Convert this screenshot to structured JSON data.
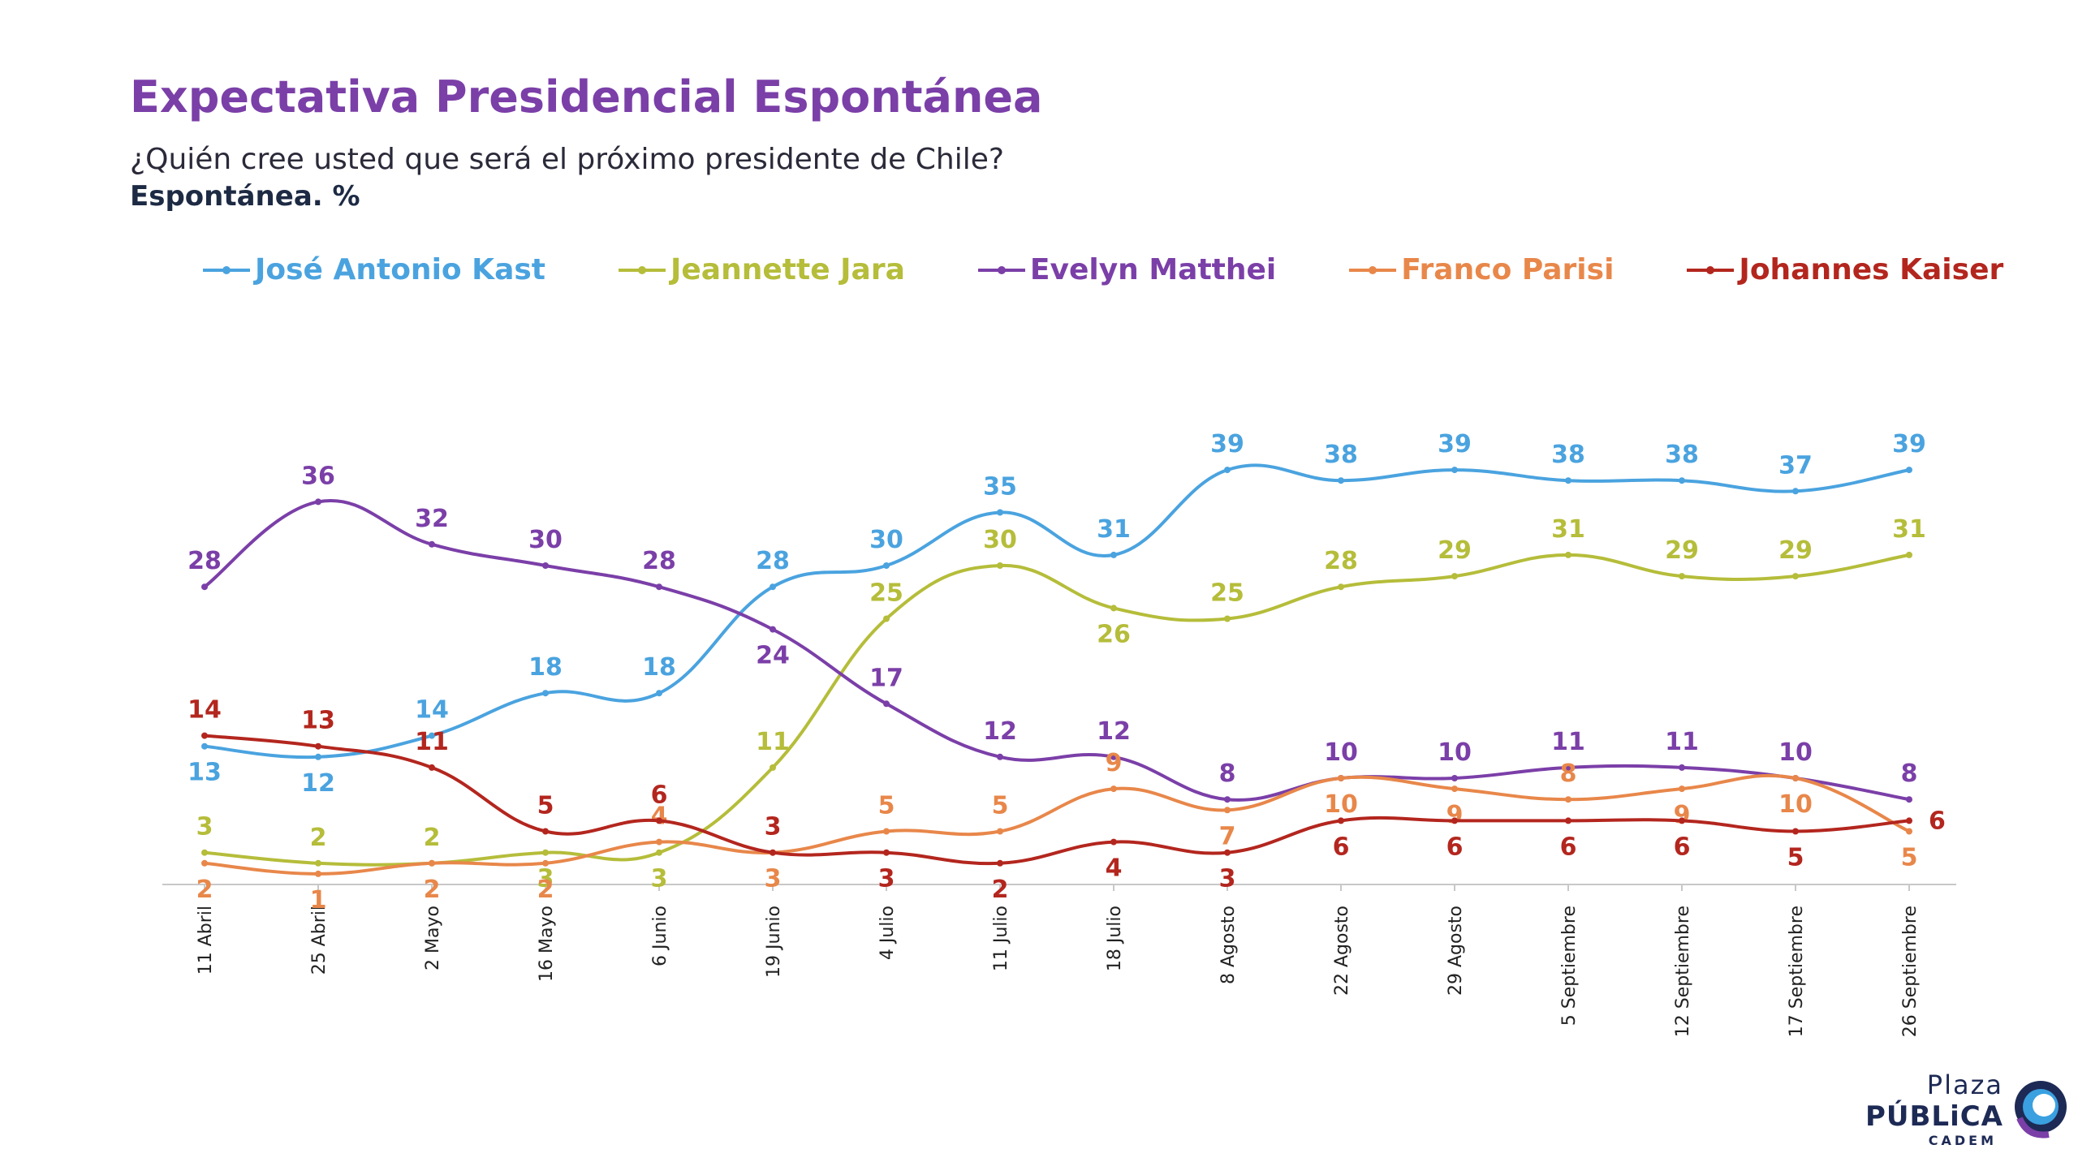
{
  "header": {
    "title": "Expectativa Presidencial Espontánea",
    "subtitle": "¿Quién cree usted que será el próximo presidente de Chile?",
    "subtitle2": "Espontánea. %"
  },
  "logo": {
    "line1": "Plaza",
    "line2": "PÚBLiCA",
    "line3": "CADEM"
  },
  "chart_data": {
    "type": "line",
    "categories": [
      "11 Abril",
      "25 Abril",
      "2 Mayo",
      "16 Mayo",
      "6 Junio",
      "19 Junio",
      "4 Julio",
      "11 Julio",
      "18 Julio",
      "8 Agosto",
      "22 Agosto",
      "29 Agosto",
      "5 Septiembre",
      "12 Septiembre",
      "17 Septiembre",
      "26 Septiembre"
    ],
    "legend_position": "top",
    "grid": false,
    "series": [
      {
        "name": "José Antonio Kast",
        "color": "#4aa3df",
        "values": [
          13,
          12,
          14,
          18,
          18,
          28,
          30,
          35,
          31,
          39,
          38,
          39,
          38,
          38,
          37,
          39
        ]
      },
      {
        "name": "Jeannette Jara",
        "color": "#b5bd3a",
        "values": [
          3,
          2,
          2,
          3,
          3,
          11,
          25,
          30,
          26,
          25,
          28,
          29,
          31,
          29,
          29,
          31
        ]
      },
      {
        "name": "Evelyn Matthei",
        "color": "#7b3fa8",
        "values": [
          28,
          36,
          32,
          30,
          28,
          24,
          17,
          12,
          12,
          8,
          10,
          10,
          11,
          11,
          10,
          8
        ]
      },
      {
        "name": "Franco Parisi",
        "color": "#e8874a",
        "values": [
          2,
          1,
          2,
          2,
          4,
          3,
          5,
          5,
          9,
          7,
          10,
          9,
          8,
          9,
          10,
          5
        ]
      },
      {
        "name": "Johannes Kaiser",
        "color": "#b3261e",
        "values": [
          14,
          13,
          11,
          5,
          6,
          3,
          3,
          2,
          4,
          3,
          6,
          6,
          6,
          6,
          5,
          6
        ]
      }
    ]
  }
}
